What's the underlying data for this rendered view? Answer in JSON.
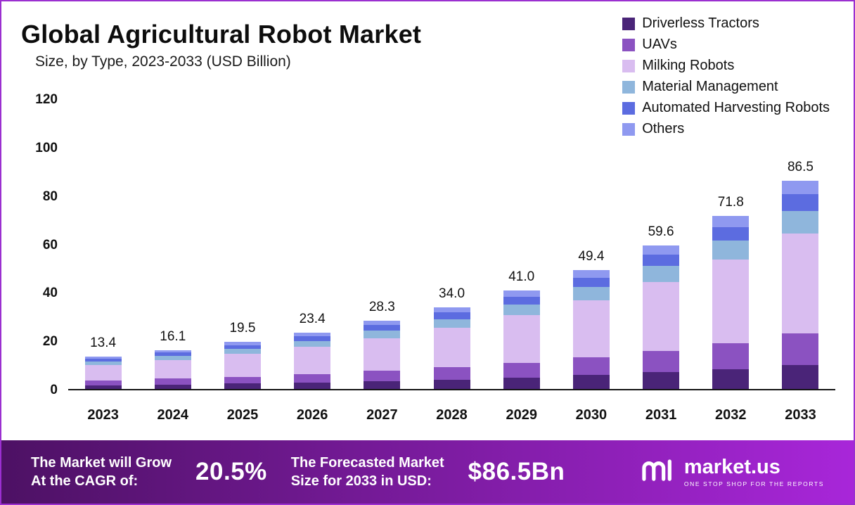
{
  "header": {
    "title": "Global Agricultural Robot Market",
    "subtitle": "Size, by Type, 2023-2033 (USD Billion)"
  },
  "chart_data": {
    "type": "bar",
    "stacked": true,
    "title": "Global Agricultural Robot Market Size, by Type, 2023-2033 (USD Billion)",
    "xlabel": "",
    "ylabel": "",
    "ylim": [
      0,
      120
    ],
    "yticks": [
      "0",
      "20",
      "40",
      "60",
      "80",
      "100",
      "120"
    ],
    "grid": false,
    "legend_position": "top-right",
    "categories": [
      "2023",
      "2024",
      "2025",
      "2026",
      "2027",
      "2028",
      "2029",
      "2030",
      "2031",
      "2032",
      "2033"
    ],
    "totals": [
      "13.4",
      "16.1",
      "19.5",
      "23.4",
      "28.3",
      "34.0",
      "41.0",
      "49.4",
      "59.6",
      "71.8",
      "86.5"
    ],
    "series": [
      {
        "name": "Driverless Tractors",
        "color": "#4a2478",
        "values": [
          1.5,
          1.9,
          2.2,
          2.7,
          3.3,
          3.9,
          4.7,
          5.7,
          6.9,
          8.3,
          10.0
        ]
      },
      {
        "name": "UAVs",
        "color": "#8b52c1",
        "values": [
          2.0,
          2.4,
          2.9,
          3.5,
          4.2,
          5.1,
          6.2,
          7.4,
          8.9,
          10.8,
          13.0
        ]
      },
      {
        "name": "Milking  Robots",
        "color": "#d9bdf0",
        "values": [
          6.4,
          7.7,
          9.4,
          11.2,
          13.6,
          16.3,
          19.7,
          23.7,
          28.6,
          34.5,
          41.5
        ]
      },
      {
        "name": "Material Management",
        "color": "#8fb6dc",
        "values": [
          1.5,
          1.8,
          2.1,
          2.6,
          3.1,
          3.7,
          4.5,
          5.4,
          6.6,
          7.9,
          9.5
        ]
      },
      {
        "name": "Automated Harvesting Robots",
        "color": "#5c6ce0",
        "values": [
          1.1,
          1.3,
          1.6,
          1.9,
          2.3,
          2.7,
          3.3,
          4.0,
          4.8,
          5.8,
          7.0
        ]
      },
      {
        "name": "Others",
        "color": "#8f99f0",
        "values": [
          0.9,
          1.0,
          1.3,
          1.5,
          1.8,
          2.3,
          2.6,
          3.2,
          3.8,
          4.5,
          5.5
        ]
      }
    ]
  },
  "footer": {
    "cagr_label_line1": "The Market will Grow",
    "cagr_label_line2": "At the CAGR of:",
    "cagr_value": "20.5%",
    "forecast_label_line1": "The Forecasted Market",
    "forecast_label_line2": "Size for 2033 in USD:",
    "forecast_value": "$86.5Bn",
    "brand_name": "market.us",
    "brand_tagline": "ONE STOP SHOP FOR THE REPORTS"
  },
  "colors": {
    "footer_gradient_start": "#4d1164",
    "footer_gradient_end": "#a826d9",
    "frame_border": "#9b2fd0",
    "axis": "#141414"
  }
}
